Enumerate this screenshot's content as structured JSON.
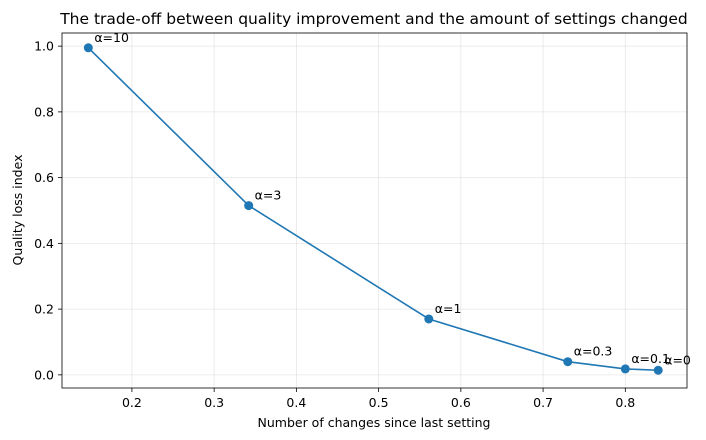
{
  "chart_data": {
    "type": "line",
    "title": "The trade-off between quality improvement and the amount of settings changed",
    "xlabel": "Number of changes since last setting",
    "ylabel": "Quality loss index",
    "xlim": [
      0.115,
      0.875
    ],
    "ylim": [
      -0.04,
      1.04
    ],
    "xticks": [
      "0.2",
      "0.3",
      "0.4",
      "0.5",
      "0.6",
      "0.7",
      "0.8"
    ],
    "yticks": [
      "0.0",
      "0.2",
      "0.4",
      "0.6",
      "0.8",
      "1.0"
    ],
    "grid": true,
    "color": "#1f77b4",
    "series": [
      {
        "x": [
          0.147,
          0.342,
          0.561,
          0.73,
          0.8,
          0.84
        ],
        "y": [
          0.995,
          0.515,
          0.17,
          0.04,
          0.018,
          0.014
        ],
        "labels": [
          "α=10",
          "α=3",
          "α=1",
          "α=0.3",
          "α=0.1",
          "α=0"
        ]
      }
    ]
  }
}
